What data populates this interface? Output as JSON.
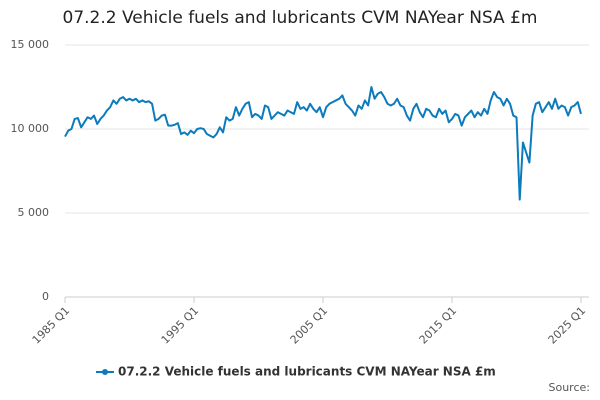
{
  "chart_data": {
    "type": "line",
    "title": "07.2.2 Vehicle fuels and lubricants CVM NAYear NSA £m",
    "source": "Source:",
    "categories": [
      "1985 Q1",
      null,
      null,
      null,
      null,
      null,
      null,
      null,
      null,
      null,
      null,
      null,
      null,
      null,
      null,
      null,
      null,
      null,
      null,
      null,
      null,
      null,
      null,
      null,
      null,
      null,
      null,
      null,
      null,
      null,
      null,
      null,
      null,
      null,
      null,
      null,
      null,
      null,
      null,
      null,
      "1995 Q1",
      null,
      null,
      null,
      null,
      null,
      null,
      null,
      null,
      null,
      null,
      null,
      null,
      null,
      null,
      null,
      null,
      null,
      null,
      null,
      null,
      null,
      null,
      null,
      null,
      null,
      null,
      null,
      null,
      null,
      null,
      null,
      null,
      null,
      null,
      null,
      null,
      null,
      null,
      null,
      "2005 Q1",
      null,
      null,
      null,
      null,
      null,
      null,
      null,
      null,
      null,
      null,
      null,
      null,
      null,
      null,
      null,
      null,
      null,
      null,
      null,
      null,
      null,
      null,
      null,
      null,
      null,
      null,
      null,
      null,
      null,
      null,
      null,
      null,
      null,
      null,
      null,
      null,
      null,
      null,
      null,
      "2015 Q1",
      null,
      null,
      null,
      null,
      null,
      null,
      null,
      null,
      null,
      null,
      null,
      null,
      null,
      null,
      null,
      null,
      null,
      null,
      null,
      null,
      null,
      null,
      null,
      null,
      null,
      null,
      null,
      null,
      null,
      null,
      null,
      null,
      null,
      null,
      null,
      null,
      null,
      null,
      null,
      "2025 Q1"
    ],
    "series": [
      {
        "name": "07.2.2 Vehicle fuels and lubricants CVM NAYear NSA £m",
        "color": "#0c7bbc",
        "values": [
          9550,
          9900,
          10000,
          10600,
          10650,
          10100,
          10400,
          10700,
          10600,
          10800,
          10300,
          10600,
          10800,
          11100,
          11300,
          11700,
          11500,
          11800,
          11900,
          11700,
          11800,
          11700,
          11800,
          11600,
          11700,
          11600,
          11650,
          11500,
          10500,
          10600,
          10800,
          10850,
          10200,
          10200,
          10250,
          10350,
          9700,
          9800,
          9650,
          9900,
          9750,
          10000,
          10050,
          10000,
          9700,
          9600,
          9500,
          9700,
          10100,
          9800,
          10700,
          10500,
          10600,
          11300,
          10800,
          11200,
          11500,
          11600,
          10700,
          10900,
          10800,
          10600,
          11400,
          11300,
          10600,
          10800,
          11000,
          10900,
          10800,
          11100,
          11000,
          10900,
          11600,
          11200,
          11300,
          11100,
          11500,
          11200,
          11000,
          11300,
          10700,
          11300,
          11500,
          11600,
          11700,
          11800,
          12000,
          11500,
          11300,
          11100,
          10800,
          11400,
          11200,
          11700,
          11400,
          12500,
          11800,
          12100,
          12200,
          11900,
          11500,
          11400,
          11500,
          11800,
          11400,
          11300,
          10800,
          10500,
          11200,
          11500,
          11000,
          10700,
          11200,
          11100,
          10800,
          10700,
          11200,
          10900,
          11100,
          10400,
          10600,
          10900,
          10800,
          10200,
          10700,
          10900,
          11100,
          10700,
          11000,
          10800,
          11200,
          10900,
          11700,
          12200,
          11900,
          11800,
          11400,
          11800,
          11500,
          10800,
          10700,
          5800,
          9200,
          8600,
          8000,
          10800,
          11500,
          11600,
          11000,
          11300,
          11600,
          11200,
          11800,
          11200,
          11400,
          11300,
          10800,
          11300,
          11400,
          11600,
          10900
        ]
      }
    ],
    "ylim": [
      0,
      15000
    ],
    "yticks": [
      0,
      {
        "value": 5000,
        "label": "5 000"
      },
      {
        "value": 10000,
        "label": "10 000"
      },
      {
        "value": 15000,
        "label": "15 000"
      }
    ],
    "grid": true
  }
}
